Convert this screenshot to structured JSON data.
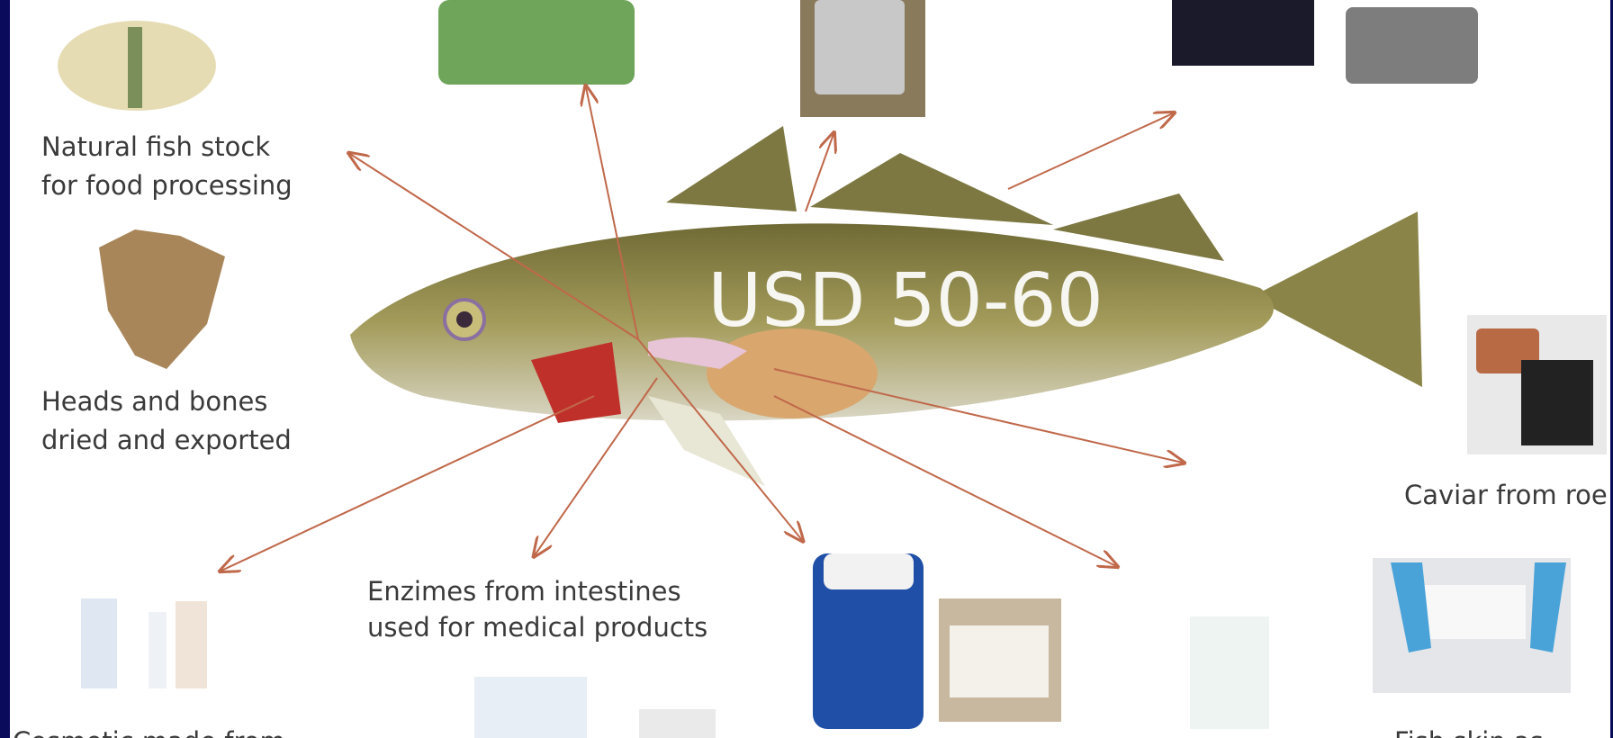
{
  "slide": {
    "center_label": "USD 50-60",
    "labels": [
      {
        "lines": [
          "Natural fish stock",
          "for food processing"
        ]
      },
      {
        "lines": [
          "Heads and bones",
          "dried and exported"
        ]
      },
      {
        "lines": [
          "Caviar from roe"
        ]
      },
      {
        "lines": [
          "Enzimes  from intestines",
          "used for medical products"
        ]
      },
      {
        "lines": [
          "Cosmetic made from"
        ]
      },
      {
        "lines": [
          "Fish skin as"
        ]
      }
    ]
  }
}
